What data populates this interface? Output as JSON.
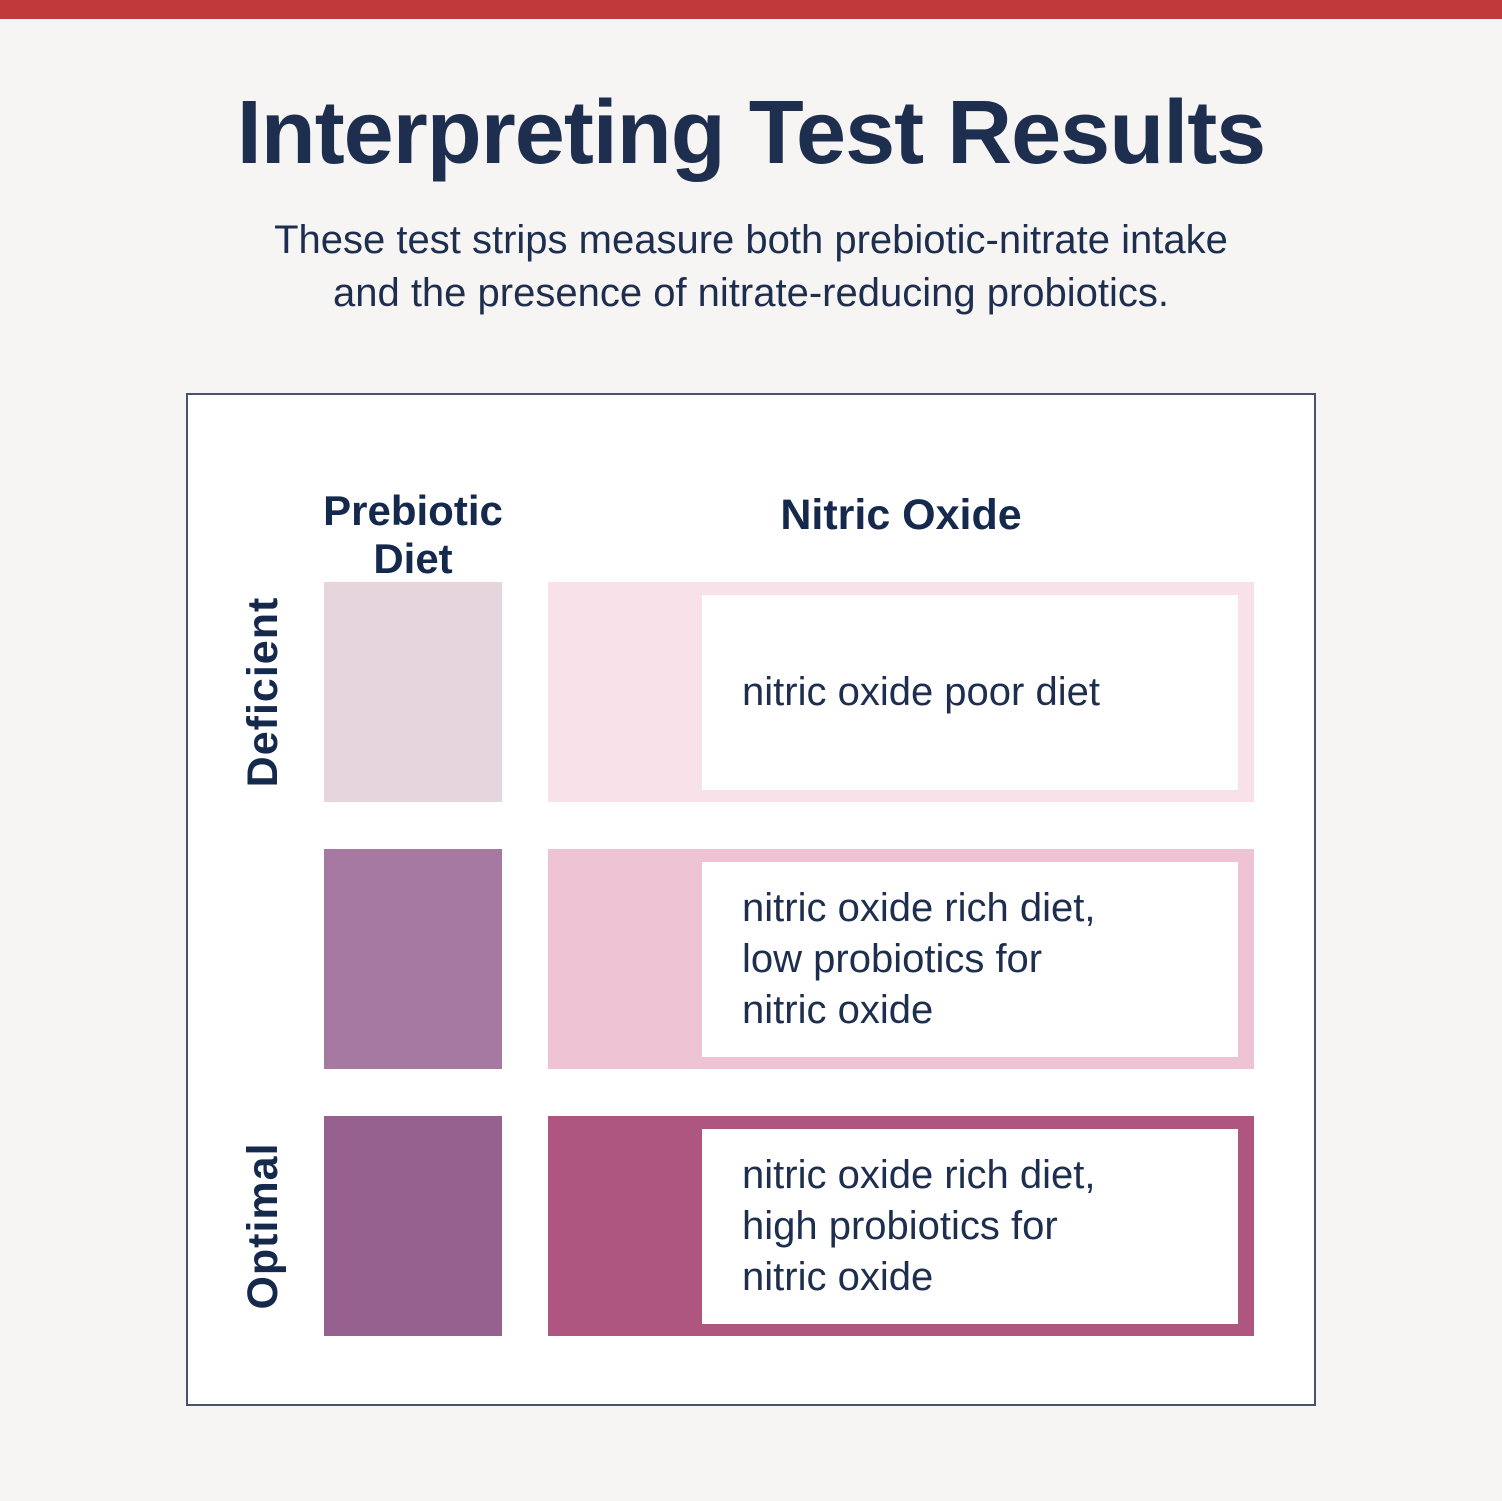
{
  "canvas": {
    "background": "#F7F5F3",
    "accent_bar_color": "#C13A3A",
    "text_navy": "#1D2E4E",
    "box_border_color": "#46536B"
  },
  "header": {
    "title": "Interpreting Test Results",
    "subtitle": "These test strips measure both prebiotic-nitrate intake\nand the presence of nitrate-reducing probiotics."
  },
  "matrix": {
    "col_headers": {
      "prebiotic": "Prebiotic\nDiet",
      "nitric": "Nitric Oxide"
    },
    "row_labels": {
      "deficient": "Deficient",
      "optimal": "Optimal"
    },
    "rows": [
      {
        "label": "Deficient",
        "prebiotic_color": "#E7D5DE",
        "nitric_color": "#F8E1E9",
        "text": "nitric oxide poor diet"
      },
      {
        "label": "",
        "prebiotic_color": "#A579A2",
        "nitric_color": "#EEC4D4",
        "text": "nitric oxide rich diet,\nlow probiotics for\nnitric oxide"
      },
      {
        "label": "Optimal",
        "prebiotic_color": "#97618F",
        "nitric_color": "#AF5680",
        "text": "nitric oxide rich diet,\nhigh probiotics for\nnitric oxide"
      }
    ]
  }
}
